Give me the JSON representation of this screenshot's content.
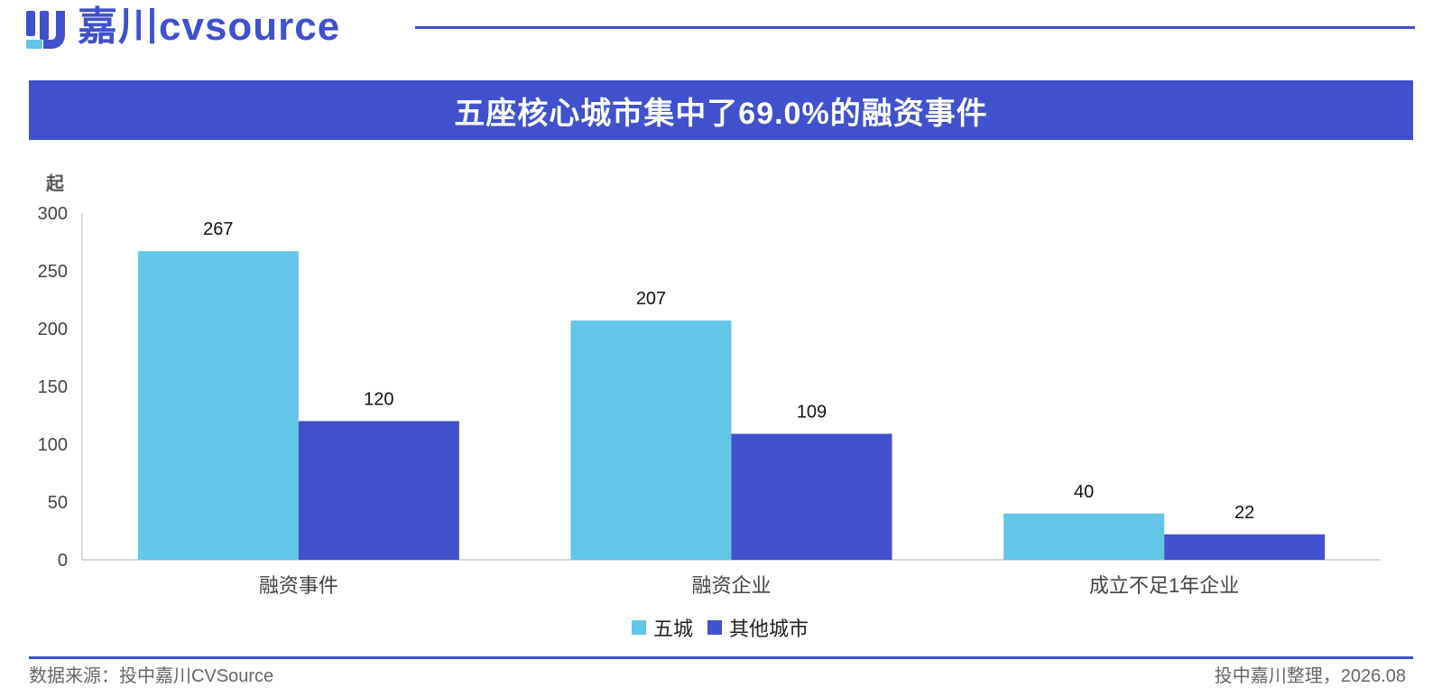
{
  "brand": {
    "logo_text": "嘉川cvsource",
    "color": "#3f51cc"
  },
  "title": "五座核心城市集中了69.0%的融资事件",
  "chart_data": {
    "type": "bar",
    "ylabel": "起",
    "ylim": [
      0,
      300
    ],
    "yticks": [
      0,
      50,
      100,
      150,
      200,
      250,
      300
    ],
    "categories": [
      "融资事件",
      "融资企业",
      "成立不足1年企业"
    ],
    "series": [
      {
        "name": "五城",
        "color": "#62c6e8",
        "values": [
          267,
          207,
          40
        ]
      },
      {
        "name": "其他城市",
        "color": "#3f51cc",
        "values": [
          120,
          109,
          22
        ]
      }
    ],
    "legend_position": "bottom",
    "grid": false
  },
  "footer": {
    "source": "数据来源：投中嘉川CVSource",
    "credit": "投中嘉川整理，2026.08"
  }
}
